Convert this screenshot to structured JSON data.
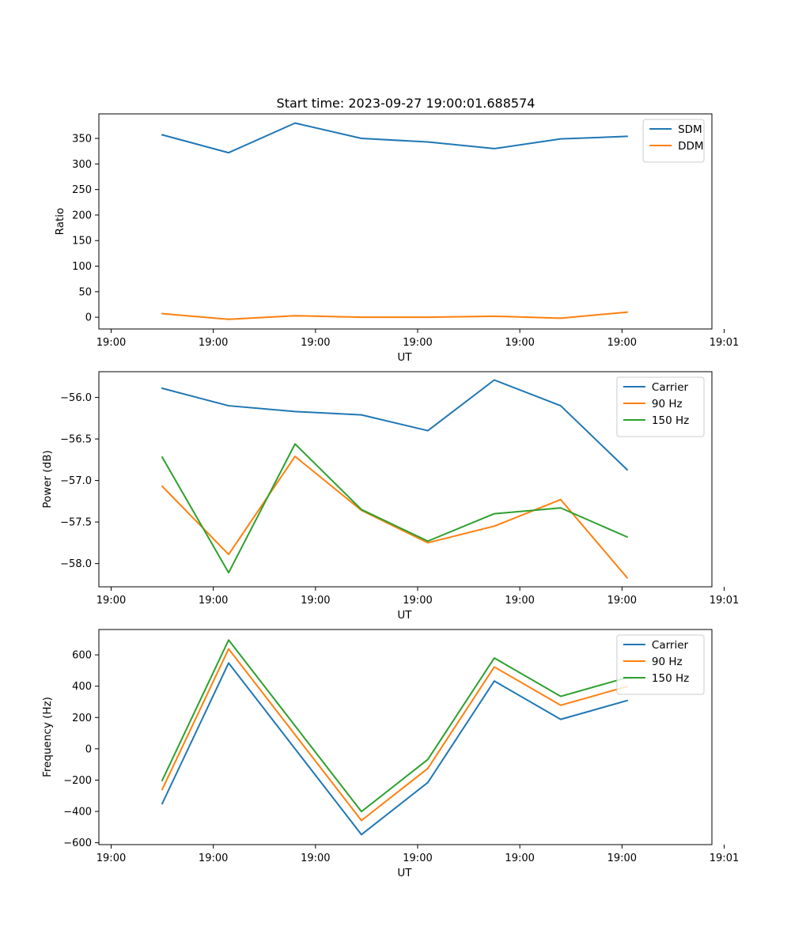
{
  "title": "Start time: 2023-09-27 19:00:01.688574",
  "chart_data": [
    {
      "type": "line",
      "name": "ratio",
      "title": "Start time: 2023-09-27 19:00:01.688574",
      "xlabel": "UT",
      "ylabel": "Ratio",
      "x": [
        0.5,
        1.15,
        1.8,
        2.45,
        3.1,
        3.75,
        4.4,
        5.05
      ],
      "xlim": [
        -0.12,
        5.88
      ],
      "ylim": [
        -23,
        398
      ],
      "xticks": [
        0,
        1,
        2,
        3,
        4,
        5,
        6
      ],
      "xtick_labels": [
        "19:00",
        "19:00",
        "19:00",
        "19:00",
        "19:00",
        "19:00",
        "19:01"
      ],
      "yticks": [
        0,
        50,
        100,
        150,
        200,
        250,
        300,
        350
      ],
      "ytick_labels": [
        "0",
        "50",
        "100",
        "150",
        "200",
        "250",
        "300",
        "350"
      ],
      "legend": "top-right",
      "series": [
        {
          "name": "SDM",
          "color": "#1f77b4",
          "values": [
            357,
            322,
            380,
            350,
            343,
            330,
            349,
            354
          ]
        },
        {
          "name": "DDM",
          "color": "#ff7f0e",
          "values": [
            7,
            -4,
            3,
            0,
            0,
            2,
            -2,
            10
          ]
        }
      ]
    },
    {
      "type": "line",
      "name": "power",
      "xlabel": "UT",
      "ylabel": "Power (dB)",
      "x": [
        0.5,
        1.15,
        1.8,
        2.45,
        3.1,
        3.75,
        4.4,
        5.05
      ],
      "xlim": [
        -0.12,
        5.88
      ],
      "ylim": [
        -58.28,
        -55.69
      ],
      "xticks": [
        0,
        1,
        2,
        3,
        4,
        5,
        6
      ],
      "xtick_labels": [
        "19:00",
        "19:00",
        "19:00",
        "19:00",
        "19:00",
        "19:00",
        "19:01"
      ],
      "yticks": [
        -58.0,
        -57.5,
        -57.0,
        -56.5,
        -56.0
      ],
      "ytick_labels": [
        "−58.0",
        "−57.5",
        "−57.0",
        "−56.5",
        "−56.0"
      ],
      "legend": "top-right",
      "series": [
        {
          "name": "Carrier",
          "color": "#1f77b4",
          "values": [
            -55.89,
            -56.1,
            -56.17,
            -56.21,
            -56.4,
            -55.79,
            -56.1,
            -56.87
          ]
        },
        {
          "name": "90 Hz",
          "color": "#ff7f0e",
          "values": [
            -57.07,
            -57.89,
            -56.71,
            -57.36,
            -57.75,
            -57.55,
            -57.23,
            -58.17
          ]
        },
        {
          "name": "150 Hz",
          "color": "#2ca02c",
          "values": [
            -56.72,
            -58.11,
            -56.56,
            -57.35,
            -57.73,
            -57.4,
            -57.33,
            -57.68
          ]
        }
      ]
    },
    {
      "type": "line",
      "name": "frequency",
      "xlabel": "UT",
      "ylabel": "Frequency (Hz)",
      "x": [
        0.5,
        1.15,
        1.8,
        2.45,
        3.1,
        3.75,
        4.4,
        5.05
      ],
      "xlim": [
        -0.12,
        5.88
      ],
      "ylim": [
        -612,
        762
      ],
      "xticks": [
        0,
        1,
        2,
        3,
        4,
        5,
        6
      ],
      "xtick_labels": [
        "19:00",
        "19:00",
        "19:00",
        "19:00",
        "19:00",
        "19:00",
        "19:01"
      ],
      "yticks": [
        -600,
        -400,
        -200,
        0,
        200,
        400,
        600
      ],
      "ytick_labels": [
        "−600",
        "−400",
        "−200",
        "0",
        "200",
        "400",
        "600"
      ],
      "legend": "top-right",
      "series": [
        {
          "name": "Carrier",
          "color": "#1f77b4",
          "values": [
            -350,
            548,
            0,
            -548,
            -215,
            433,
            188,
            308
          ]
        },
        {
          "name": "90 Hz",
          "color": "#ff7f0e",
          "values": [
            -259,
            638,
            90,
            -458,
            -125,
            523,
            278,
            398
          ]
        },
        {
          "name": "150 Hz",
          "color": "#2ca02c",
          "values": [
            -202,
            695,
            147,
            -401,
            -68,
            580,
            335,
            455
          ]
        }
      ]
    }
  ]
}
